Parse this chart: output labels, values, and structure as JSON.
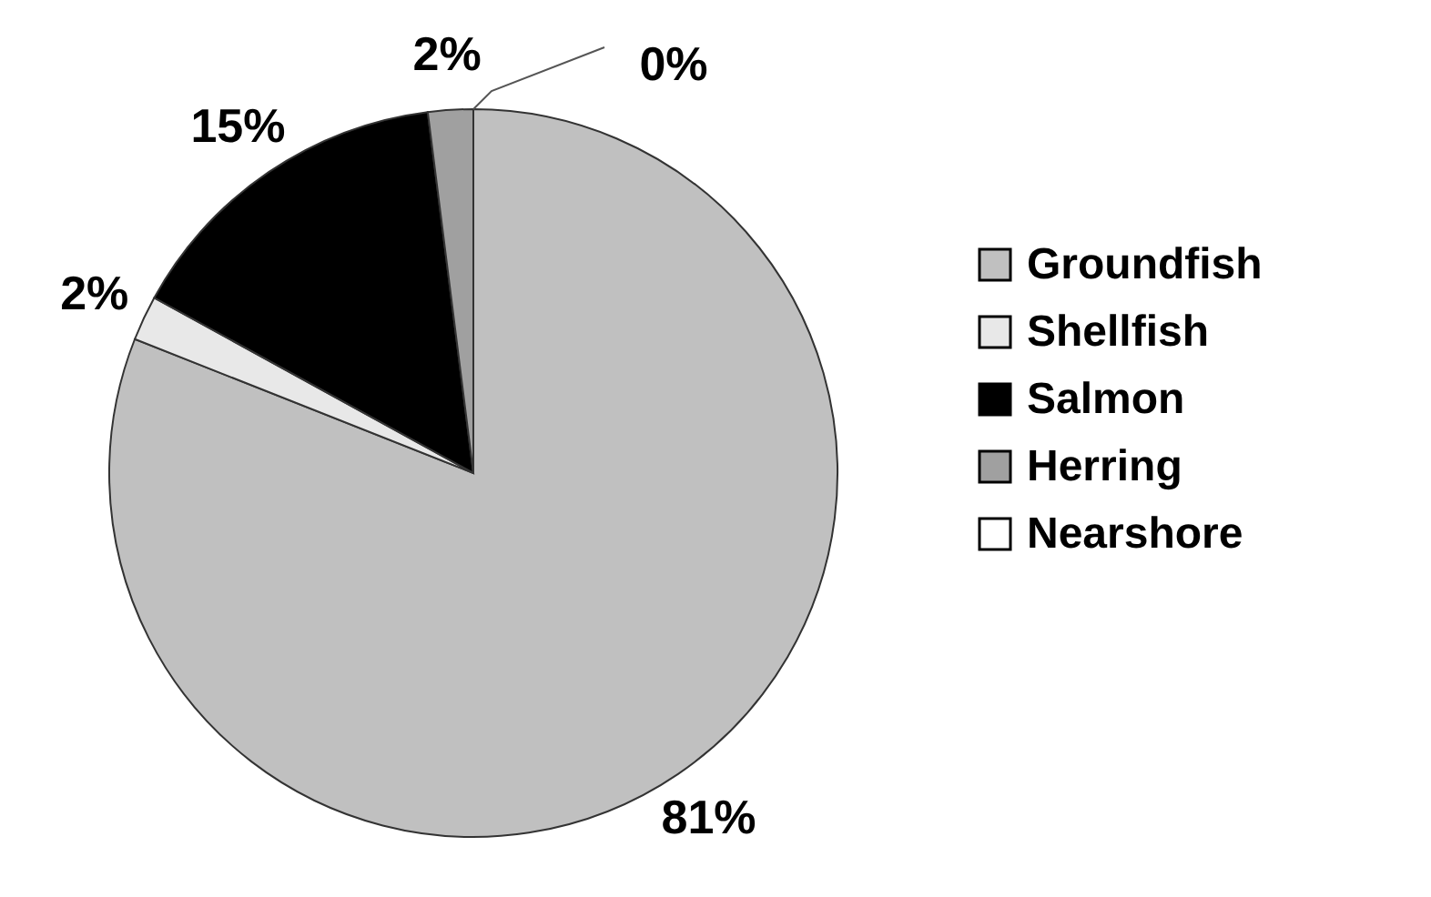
{
  "chart_data": {
    "type": "pie",
    "categories": [
      "Groundfish",
      "Shellfish",
      "Salmon",
      "Herring",
      "Nearshore"
    ],
    "values": [
      81,
      2,
      15,
      2,
      0
    ],
    "colors": [
      "#c0c0c0",
      "#e8e8e8",
      "#000000",
      "#a0a0a0",
      "#ffffff"
    ],
    "value_labels": [
      "81%",
      "2%",
      "15%",
      "2%",
      "0%"
    ],
    "legend": "right"
  }
}
